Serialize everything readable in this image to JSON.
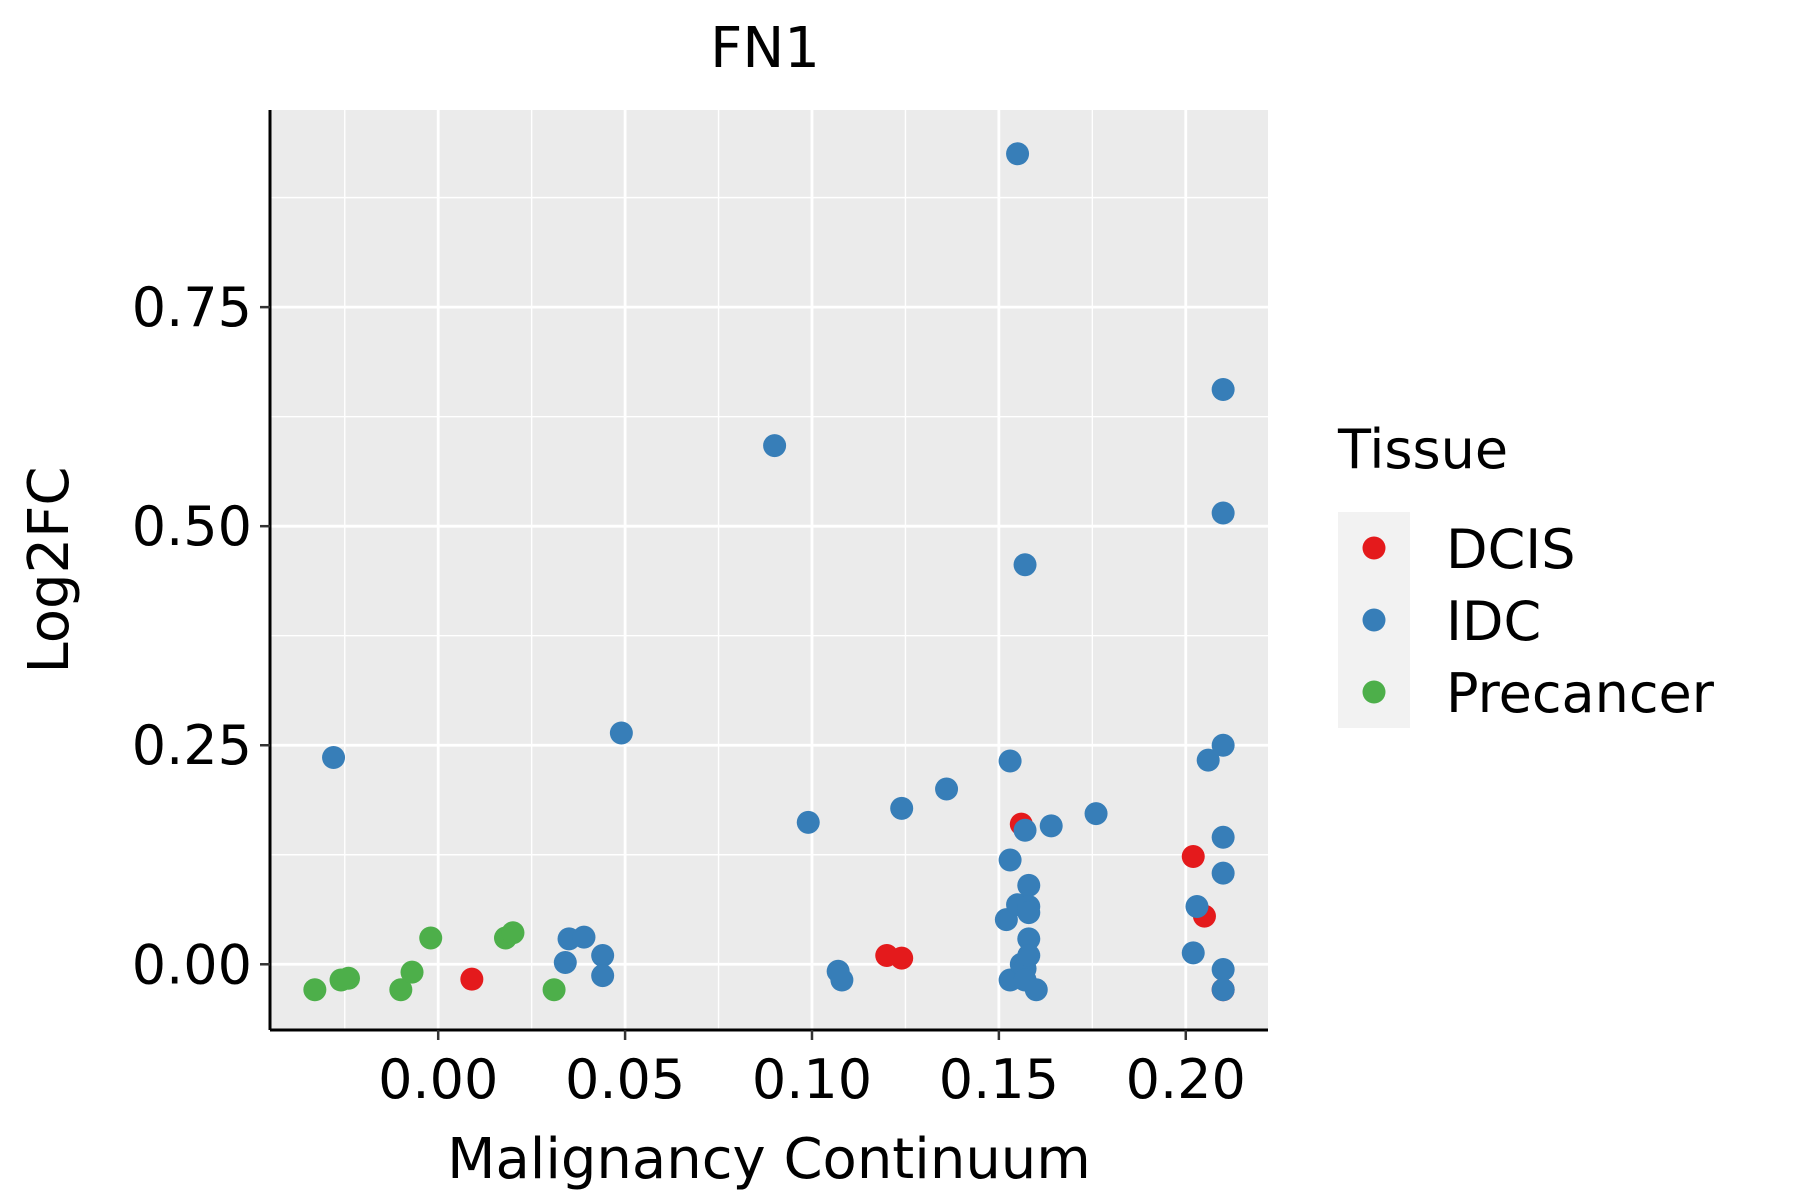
{
  "chart_data": {
    "type": "scatter",
    "title": "FN1",
    "xlabel": "Malignancy Continuum",
    "ylabel": "Log2FC",
    "xlim": [
      -0.045,
      0.222
    ],
    "ylim": [
      -0.075,
      0.975
    ],
    "x_ticks": [
      0.0,
      0.05,
      0.1,
      0.15,
      0.2
    ],
    "x_tick_labels": [
      "0.00",
      "0.05",
      "0.10",
      "0.15",
      "0.20"
    ],
    "y_ticks": [
      0.0,
      0.25,
      0.5,
      0.75
    ],
    "y_tick_labels": [
      "0.00",
      "0.25",
      "0.50",
      "0.75"
    ],
    "grid": true,
    "legend": {
      "title": "Tissue",
      "position": "right",
      "entries": [
        {
          "name": "DCIS",
          "color": "#E41A1C"
        },
        {
          "name": "IDC",
          "color": "#377EB8"
        },
        {
          "name": "Precancer",
          "color": "#4DAF4A"
        }
      ]
    },
    "series": [
      {
        "name": "DCIS",
        "color": "#E41A1C",
        "points": [
          [
            0.009,
            -0.017
          ],
          [
            0.12,
            0.01
          ],
          [
            0.124,
            0.007
          ],
          [
            0.156,
            0.16
          ],
          [
            0.202,
            0.123
          ],
          [
            0.205,
            0.055
          ],
          [
            0.21,
            -0.029
          ]
        ]
      },
      {
        "name": "IDC",
        "color": "#377EB8",
        "points": [
          [
            -0.028,
            0.236
          ],
          [
            0.034,
            0.002
          ],
          [
            0.035,
            0.029
          ],
          [
            0.039,
            0.031
          ],
          [
            0.044,
            0.01
          ],
          [
            0.044,
            -0.013
          ],
          [
            0.049,
            0.264
          ],
          [
            0.09,
            0.592
          ],
          [
            0.099,
            0.162
          ],
          [
            0.107,
            -0.008
          ],
          [
            0.108,
            -0.018
          ],
          [
            0.124,
            0.178
          ],
          [
            0.136,
            0.2
          ],
          [
            0.153,
            0.232
          ],
          [
            0.153,
            0.119
          ],
          [
            0.152,
            0.051
          ],
          [
            0.155,
            0.068
          ],
          [
            0.153,
            -0.018
          ],
          [
            0.155,
            0.925
          ],
          [
            0.156,
            0.0
          ],
          [
            0.157,
            -0.005
          ],
          [
            0.157,
            -0.018
          ],
          [
            0.157,
            0.153
          ],
          [
            0.157,
            0.456
          ],
          [
            0.158,
            0.09
          ],
          [
            0.158,
            0.066
          ],
          [
            0.158,
            0.059
          ],
          [
            0.158,
            0.029
          ],
          [
            0.158,
            0.01
          ],
          [
            0.16,
            -0.029
          ],
          [
            0.164,
            0.158
          ],
          [
            0.176,
            0.172
          ],
          [
            0.202,
            0.013
          ],
          [
            0.203,
            0.066
          ],
          [
            0.206,
            0.233
          ],
          [
            0.21,
            0.656
          ],
          [
            0.21,
            0.515
          ],
          [
            0.21,
            0.25
          ],
          [
            0.21,
            0.145
          ],
          [
            0.21,
            0.104
          ],
          [
            0.21,
            -0.006
          ],
          [
            0.21,
            -0.029
          ]
        ]
      },
      {
        "name": "Precancer",
        "color": "#4DAF4A",
        "points": [
          [
            -0.033,
            -0.029
          ],
          [
            -0.026,
            -0.018
          ],
          [
            -0.024,
            -0.016
          ],
          [
            -0.01,
            -0.029
          ],
          [
            -0.007,
            -0.009
          ],
          [
            -0.002,
            0.03
          ],
          [
            0.018,
            0.03
          ],
          [
            0.02,
            0.036
          ],
          [
            0.031,
            -0.029
          ]
        ]
      }
    ]
  }
}
